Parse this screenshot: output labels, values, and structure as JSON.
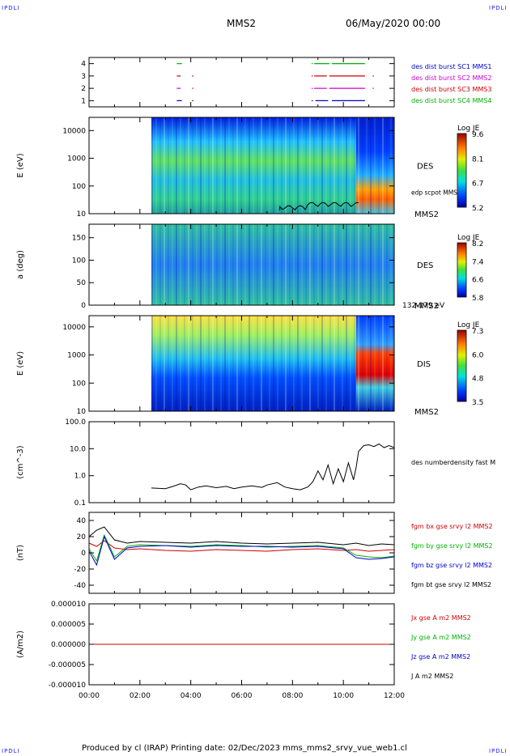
{
  "header": {
    "corner_left": "IPDLI",
    "corner_right": "IPDLI",
    "mission": "MMS2",
    "date": "06/May/2020 00:00",
    "corner_bottom_left": "IPDLI",
    "corner_bottom_right": "IPDLI"
  },
  "footer": {
    "text": "Produced by cl (IRAP)   Printing date: 02/Dec/2023   mms_mms2_srvy_vue_web1.cl"
  },
  "colors": {
    "c1": "#0000cc",
    "c2": "#cc00cc",
    "c3": "#cc0000",
    "c4": "#00b000",
    "bx": "#cc0000",
    "by": "#00b000",
    "bz": "#0000cc",
    "bt": "#000000"
  },
  "chart_data": [
    {
      "type": "timeline",
      "id": "burst",
      "ylim": [
        0.5,
        4.5
      ],
      "yticks": [
        "1",
        "2",
        "3",
        "4"
      ],
      "legend": [
        {
          "text": "des dist burst SC1 MMS1",
          "color": "#0000cc"
        },
        {
          "text": "des dist burst SC2 MMS2",
          "color": "#cc00cc"
        },
        {
          "text": "des dist burst SC3 MMS3",
          "color": "#cc0000"
        },
        {
          "text": "des dist burst SC4 MMS4",
          "color": "#00b000"
        }
      ],
      "intervals": [
        {
          "level": 4,
          "color": "#00b000",
          "t": [
            [
              3.45,
              3.65
            ],
            [
              8.75,
              8.8
            ],
            [
              8.85,
              9.45
            ],
            [
              9.55,
              10.85
            ]
          ]
        },
        {
          "level": 3,
          "color": "#cc0000",
          "t": [
            [
              3.45,
              3.6
            ],
            [
              4.05,
              4.1
            ],
            [
              8.75,
              8.8
            ],
            [
              8.85,
              9.35
            ],
            [
              9.45,
              10.85
            ],
            [
              11.15,
              11.2
            ]
          ]
        },
        {
          "level": 2,
          "color": "#cc00cc",
          "t": [
            [
              3.45,
              3.6
            ],
            [
              4.05,
              4.1
            ],
            [
              8.75,
              8.8
            ],
            [
              8.85,
              9.35
            ],
            [
              9.45,
              10.85
            ],
            [
              11.15,
              11.2
            ]
          ]
        },
        {
          "level": 1,
          "color": "#0000cc",
          "t": [
            [
              3.45,
              3.65
            ],
            [
              4.05,
              4.1
            ],
            [
              8.75,
              8.8
            ],
            [
              8.9,
              9.4
            ],
            [
              9.55,
              10.85
            ]
          ]
        }
      ]
    },
    {
      "type": "heatmap",
      "id": "des_energy",
      "ylabel": "E (eV)",
      "yscale": "log",
      "ylim": [
        10,
        30000
      ],
      "yticks": [
        "10",
        "100",
        "1000",
        "10000"
      ],
      "label": "DES",
      "sublabel": "MMS2",
      "overlay_label": "edp scpot MMS2",
      "colorbar": {
        "title": "Log JE",
        "ticks": [
          "9.6",
          "8.1",
          "6.7",
          "5.2"
        ]
      },
      "data_start_hour": 2.45
    },
    {
      "type": "heatmap",
      "id": "des_pitch",
      "ylabel": "a (deg)",
      "ylim": [
        0,
        180
      ],
      "yticks": [
        "0",
        "50",
        "100",
        "150"
      ],
      "label": "DES",
      "sublabel": "MMS2",
      "range_label": "132-179 eV",
      "colorbar": {
        "title": "Log JE",
        "ticks": [
          "8.2",
          "7.4",
          "6.6",
          "5.8"
        ]
      },
      "data_start_hour": 2.45
    },
    {
      "type": "heatmap",
      "id": "dis_energy",
      "ylabel": "E (eV)",
      "yscale": "log",
      "ylim": [
        10,
        25000
      ],
      "yticks": [
        "10",
        "100",
        "1000",
        "10000"
      ],
      "label": "DIS",
      "sublabel": "MMS2",
      "colorbar": {
        "title": "Log JE",
        "ticks": [
          "7.3",
          "6.0",
          "4.8",
          "3.5"
        ]
      },
      "data_start_hour": 2.45
    },
    {
      "type": "line",
      "id": "density",
      "ylabel": "(cm^-3)",
      "yscale": "log",
      "ylim": [
        0.1,
        100
      ],
      "yticks": [
        "0.1",
        "1.0",
        "10.0",
        "100.0"
      ],
      "legend": [
        {
          "text": "des numberdensity fast M",
          "color": "#000000"
        }
      ],
      "series": [
        {
          "x": [
            2.45,
            3.0,
            3.3,
            3.6,
            3.8,
            4.0,
            4.3,
            4.6,
            5.0,
            5.4,
            5.7,
            6.0,
            6.4,
            6.8,
            7.0,
            7.4,
            7.7,
            8.0,
            8.3,
            8.6,
            8.8,
            9.0,
            9.2,
            9.4,
            9.6,
            9.8,
            10.0,
            10.2,
            10.4,
            10.5,
            10.6,
            10.8,
            11.0,
            11.2,
            11.4,
            11.6,
            11.8,
            12.0
          ],
          "y": [
            0.35,
            0.33,
            0.4,
            0.5,
            0.45,
            0.3,
            0.38,
            0.42,
            0.36,
            0.4,
            0.33,
            0.38,
            0.42,
            0.37,
            0.45,
            0.55,
            0.38,
            0.33,
            0.3,
            0.38,
            0.6,
            1.5,
            0.7,
            2.5,
            0.5,
            1.8,
            0.6,
            3.0,
            0.7,
            2.0,
            8.0,
            13.0,
            14.0,
            12.0,
            15.0,
            11.0,
            13.0,
            11.0
          ]
        }
      ]
    },
    {
      "type": "line",
      "id": "fgm",
      "ylabel": "(nT)",
      "ylim": [
        -50,
        50
      ],
      "yticks": [
        "-40",
        "-20",
        "0",
        "20",
        "40"
      ],
      "legend": [
        {
          "text": "fgm bx gse srvy l2 MMS2",
          "color": "#cc0000"
        },
        {
          "text": "fgm by gse srvy l2 MMS2",
          "color": "#00b000"
        },
        {
          "text": "fgm bz gse srvy l2 MMS2",
          "color": "#0000cc"
        },
        {
          "text": "fgm bt gse srvy l2 MMS2",
          "color": "#000000"
        }
      ],
      "series": [
        {
          "x": [
            0,
            0.3,
            0.6,
            1.0,
            1.5,
            2.0,
            3.0,
            4.0,
            5.0,
            6.0,
            7.0,
            8.0,
            9.0,
            10.0,
            10.5,
            11.0,
            11.5,
            12.0
          ],
          "y": [
            12,
            8,
            15,
            6,
            4,
            5,
            3,
            2,
            4,
            3,
            2,
            4,
            5,
            3,
            4,
            2,
            3,
            4
          ]
        },
        {
          "x": [
            0,
            0.3,
            0.6,
            1.0,
            1.5,
            2.0,
            3.0,
            4.0,
            5.0,
            6.0,
            7.0,
            8.0,
            9.0,
            10.0,
            10.5,
            11.0,
            11.5,
            12.0
          ],
          "y": [
            5,
            -10,
            22,
            -5,
            8,
            10,
            9,
            8,
            10,
            9,
            7,
            8,
            9,
            6,
            -3,
            -5,
            -6,
            -4
          ]
        },
        {
          "x": [
            0,
            0.3,
            0.6,
            1.0,
            1.5,
            2.0,
            3.0,
            4.0,
            5.0,
            6.0,
            7.0,
            8.0,
            9.0,
            10.0,
            10.5,
            11.0,
            11.5,
            12.0
          ],
          "y": [
            2,
            -15,
            20,
            -8,
            6,
            8,
            9,
            7,
            9,
            8,
            8,
            7,
            8,
            5,
            -6,
            -8,
            -7,
            -5
          ]
        },
        {
          "x": [
            0,
            0.3,
            0.6,
            1.0,
            1.5,
            2.0,
            3.0,
            4.0,
            5.0,
            6.0,
            7.0,
            8.0,
            9.0,
            10.0,
            10.5,
            11.0,
            11.5,
            12.0
          ],
          "y": [
            20,
            28,
            32,
            16,
            12,
            14,
            13,
            12,
            14,
            12,
            11,
            12,
            13,
            10,
            12,
            9,
            11,
            10
          ]
        }
      ]
    },
    {
      "type": "line",
      "id": "current",
      "ylabel": "(A/m2)",
      "ylim": [
        -1e-05,
        1e-05
      ],
      "yticks": [
        "-0.000010",
        "-0.000005",
        "0.000000",
        "0.000005",
        "0.000010"
      ],
      "xticks": [
        "00:00",
        "02:00",
        "04:00",
        "06:00",
        "08:00",
        "10:00",
        "12:00"
      ],
      "xlim": [
        0,
        12
      ],
      "legend": [
        {
          "text": "Jx gse A m2 MMS2",
          "color": "#cc0000"
        },
        {
          "text": "Jy gse A m2 MMS2",
          "color": "#00b000"
        },
        {
          "text": "Jz gse A m2 MMS2",
          "color": "#0000cc"
        },
        {
          "text": "J A m2 MMS2",
          "color": "#000000"
        }
      ],
      "series": [
        {
          "x": [
            0,
            12
          ],
          "y": [
            0,
            0
          ]
        }
      ]
    }
  ]
}
